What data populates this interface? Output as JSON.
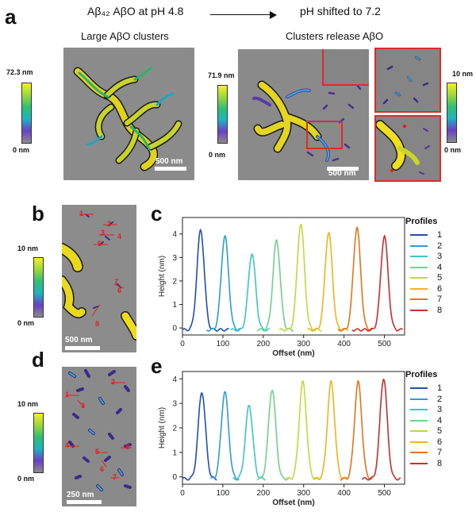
{
  "panel_a": {
    "letter": "a",
    "left_header": "Aβ₄₂ AβO at pH 4.8",
    "right_header": "pH shifted to 7.2",
    "left_subtitle": "Large AβO clusters",
    "right_subtitle": "Clusters release AβO",
    "left_colorbar_max": "72.3 nm",
    "left_colorbar_min": "0 nm",
    "right_colorbar_max": "71.9 nm",
    "right_colorbar_min": "0 nm",
    "inset_colorbar_max": "10 nm",
    "inset_colorbar_min": "0 nm",
    "left_scalebar": "500 nm",
    "right_scalebar": "500 nm"
  },
  "panel_b": {
    "letter": "b",
    "colorbar_max": "10 nm",
    "colorbar_min": "0 nm",
    "scalebar": "500 nm",
    "markers": [
      "1",
      "2",
      "3",
      "4",
      "5",
      "6",
      "7",
      "8"
    ]
  },
  "panel_d": {
    "letter": "d",
    "colorbar_max": "10 nm",
    "colorbar_min": "0 nm",
    "scalebar": "250 nm",
    "markers": [
      "1",
      "2",
      "3",
      "4",
      "5",
      "6",
      "7",
      "8"
    ]
  },
  "colors": {
    "p1": "#1f4fb5",
    "p2": "#2a9fd6",
    "p3": "#3cc6c9",
    "p4": "#6fd38a",
    "p5": "#c4d83a",
    "p6": "#f2b31b",
    "p7": "#e8741a",
    "p8": "#d42a2a"
  },
  "chart_data": [
    {
      "panel": "c",
      "type": "line",
      "xlabel": "Offset (nm)",
      "ylabel": "Height (nm)",
      "xlim": [
        0,
        550
      ],
      "ylim": [
        -0.3,
        4.7
      ],
      "xticks": [
        0,
        100,
        200,
        300,
        400,
        500
      ],
      "yticks": [
        0,
        1,
        2,
        3,
        4
      ],
      "legend_title": "Profiles",
      "series": [
        {
          "name": "1",
          "center": 45,
          "height": 4.25,
          "start": 0,
          "end": 115
        },
        {
          "name": "2",
          "center": 105,
          "height": 4.0,
          "start": 60,
          "end": 145
        },
        {
          "name": "3",
          "center": 172,
          "height": 3.25,
          "start": 120,
          "end": 215
        },
        {
          "name": "4",
          "center": 233,
          "height": 3.8,
          "start": 185,
          "end": 275
        },
        {
          "name": "5",
          "center": 293,
          "height": 4.5,
          "start": 240,
          "end": 345
        },
        {
          "name": "6",
          "center": 362,
          "height": 4.15,
          "start": 310,
          "end": 410
        },
        {
          "name": "7",
          "center": 432,
          "height": 4.35,
          "start": 385,
          "end": 470
        },
        {
          "name": "8",
          "center": 500,
          "height": 4.0,
          "start": 420,
          "end": 545
        }
      ]
    },
    {
      "panel": "e",
      "type": "line",
      "xlabel": "Offset (nm)",
      "ylabel": "Height (nm)",
      "xlim": [
        0,
        550
      ],
      "ylim": [
        -0.3,
        4.3
      ],
      "xticks": [
        0,
        100,
        200,
        300,
        400,
        500
      ],
      "yticks": [
        0,
        1,
        2,
        3,
        4
      ],
      "legend_title": "Profiles",
      "series": [
        {
          "name": "1",
          "center": 48,
          "height": 3.55,
          "start": 0,
          "end": 85
        },
        {
          "name": "2",
          "center": 105,
          "height": 3.55,
          "start": 70,
          "end": 140
        },
        {
          "name": "3",
          "center": 165,
          "height": 3.0,
          "start": 125,
          "end": 205
        },
        {
          "name": "4",
          "center": 222,
          "height": 3.65,
          "start": 185,
          "end": 265
        },
        {
          "name": "5",
          "center": 298,
          "height": 3.95,
          "start": 255,
          "end": 340
        },
        {
          "name": "6",
          "center": 368,
          "height": 3.95,
          "start": 325,
          "end": 410
        },
        {
          "name": "7",
          "center": 435,
          "height": 3.95,
          "start": 390,
          "end": 470
        },
        {
          "name": "8",
          "center": 498,
          "height": 4.1,
          "start": 445,
          "end": 540
        }
      ]
    }
  ]
}
